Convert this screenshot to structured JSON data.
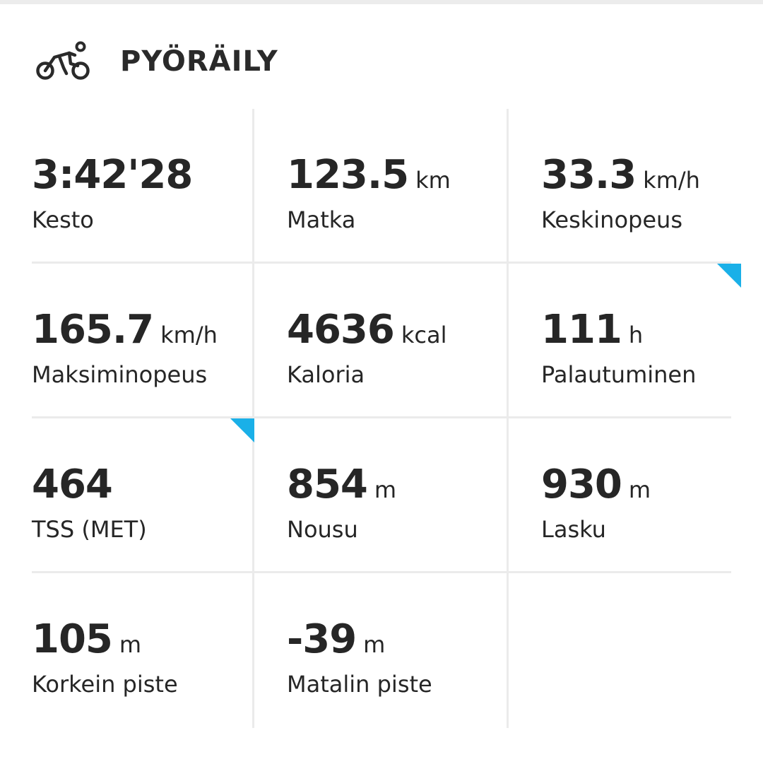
{
  "header": {
    "title": "PYÖRÄILY",
    "icon": "cycling-icon"
  },
  "colors": {
    "accent": "#1ab0e8",
    "divider": "#ebebeb",
    "text": "#262626"
  },
  "stats": [
    {
      "value": "3:42'28",
      "unit": "",
      "label": "Kesto"
    },
    {
      "value": "123.5",
      "unit": "km",
      "label": "Matka"
    },
    {
      "value": "33.3",
      "unit": "km/h",
      "label": "Keskinopeus"
    },
    {
      "value": "165.7",
      "unit": "km/h",
      "label": "Maksiminopeus"
    },
    {
      "value": "4636",
      "unit": "kcal",
      "label": "Kaloria"
    },
    {
      "value": "111",
      "unit": "h",
      "label": "Palautuminen"
    },
    {
      "value": "464",
      "unit": "",
      "label": "TSS (MET)"
    },
    {
      "value": "854",
      "unit": "m",
      "label": "Nousu"
    },
    {
      "value": "930",
      "unit": "m",
      "label": "Lasku"
    },
    {
      "value": "105",
      "unit": "m",
      "label": "Korkein piste"
    },
    {
      "value": "-39",
      "unit": "m",
      "label": "Matalin piste"
    }
  ]
}
